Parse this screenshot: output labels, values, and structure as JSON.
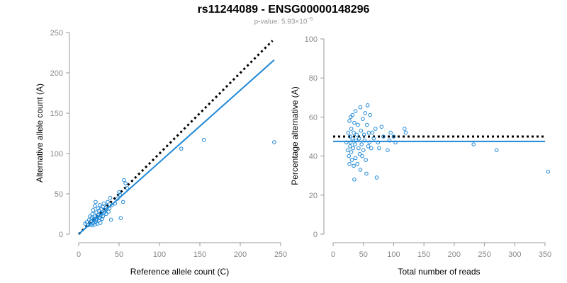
{
  "header": {
    "title": "rs11244089 - ENSG00000148296",
    "pvalue_prefix": "p-value: 5.93×10",
    "pvalue_exponent": "−5"
  },
  "chart_data": [
    {
      "type": "scatter",
      "xlabel": "Reference allele count (C)",
      "ylabel": "Alternative allele count (A)",
      "xlim": [
        0,
        250
      ],
      "ylim": [
        0,
        250
      ],
      "xticks": [
        "0",
        "50",
        "100",
        "150",
        "200",
        "250"
      ],
      "yticks": [
        "0",
        "50",
        "100",
        "150",
        "200",
        "250"
      ],
      "grid": false,
      "point_color": "#1f88d6",
      "reference_line": {
        "style": "dotted",
        "color": "#000000",
        "from": [
          0,
          0
        ],
        "to": [
          240,
          240
        ]
      },
      "fit_line": {
        "style": "solid",
        "color": "#1f88d6",
        "from": [
          0,
          0
        ],
        "to": [
          242,
          216
        ]
      },
      "points": [
        [
          8,
          13
        ],
        [
          10,
          15
        ],
        [
          12,
          11
        ],
        [
          13,
          18
        ],
        [
          14,
          22
        ],
        [
          15,
          12
        ],
        [
          15,
          16
        ],
        [
          16,
          20
        ],
        [
          17,
          11
        ],
        [
          17,
          25
        ],
        [
          18,
          14
        ],
        [
          18,
          30
        ],
        [
          19,
          17
        ],
        [
          19,
          19
        ],
        [
          20,
          12
        ],
        [
          20,
          22
        ],
        [
          20,
          35
        ],
        [
          21,
          15
        ],
        [
          21,
          40
        ],
        [
          22,
          18
        ],
        [
          22,
          27
        ],
        [
          23,
          21
        ],
        [
          23,
          13
        ],
        [
          24,
          24
        ],
        [
          24,
          32
        ],
        [
          25,
          17
        ],
        [
          25,
          29
        ],
        [
          26,
          20
        ],
        [
          26,
          36
        ],
        [
          27,
          14
        ],
        [
          27,
          23
        ],
        [
          28,
          26
        ],
        [
          28,
          31
        ],
        [
          29,
          19
        ],
        [
          30,
          22
        ],
        [
          30,
          34
        ],
        [
          31,
          38
        ],
        [
          32,
          27
        ],
        [
          33,
          30
        ],
        [
          34,
          25
        ],
        [
          35,
          35
        ],
        [
          36,
          40
        ],
        [
          37,
          28
        ],
        [
          38,
          32
        ],
        [
          39,
          45
        ],
        [
          40,
          18
        ],
        [
          41,
          36
        ],
        [
          45,
          38
        ],
        [
          48,
          44
        ],
        [
          50,
          52
        ],
        [
          51,
          49
        ],
        [
          52,
          20
        ],
        [
          55,
          40
        ],
        [
          56,
          67
        ],
        [
          58,
          63
        ],
        [
          60,
          57
        ],
        [
          127,
          106
        ],
        [
          155,
          117
        ],
        [
          242,
          114
        ]
      ]
    },
    {
      "type": "scatter",
      "xlabel": "Total number of reads",
      "ylabel": "Percentage alternative (A)",
      "xlim": [
        0,
        350
      ],
      "ylim": [
        0,
        100
      ],
      "xticks": [
        "0",
        "50",
        "100",
        "150",
        "200",
        "250",
        "300",
        "350"
      ],
      "yticks": [
        "0",
        "20",
        "40",
        "60",
        "80",
        "100"
      ],
      "grid": false,
      "point_color": "#1f88d6",
      "reference_line": {
        "style": "dotted",
        "color": "#000000",
        "y": 50
      },
      "fit_line": {
        "style": "solid",
        "color": "#1f88d6",
        "y": 47.5
      },
      "points": [
        [
          22,
          47
        ],
        [
          24,
          43
        ],
        [
          25,
          52
        ],
        [
          26,
          40
        ],
        [
          27,
          58
        ],
        [
          27,
          36
        ],
        [
          28,
          50
        ],
        [
          28,
          45
        ],
        [
          29,
          60
        ],
        [
          29,
          47
        ],
        [
          30,
          54
        ],
        [
          30,
          42
        ],
        [
          31,
          38
        ],
        [
          32,
          49
        ],
        [
          32,
          61
        ],
        [
          33,
          44
        ],
        [
          34,
          35
        ],
        [
          34,
          52
        ],
        [
          35,
          28
        ],
        [
          35,
          57
        ],
        [
          36,
          46
        ],
        [
          37,
          39
        ],
        [
          37,
          63
        ],
        [
          38,
          48
        ],
        [
          39,
          51
        ],
        [
          40,
          36
        ],
        [
          41,
          56
        ],
        [
          42,
          44
        ],
        [
          43,
          49
        ],
        [
          44,
          41
        ],
        [
          45,
          65
        ],
        [
          45,
          33
        ],
        [
          46,
          53
        ],
        [
          47,
          46
        ],
        [
          48,
          40
        ],
        [
          49,
          59
        ],
        [
          50,
          43
        ],
        [
          51,
          51
        ],
        [
          52,
          48
        ],
        [
          53,
          62
        ],
        [
          54,
          38
        ],
        [
          55,
          31
        ],
        [
          56,
          56
        ],
        [
          57,
          66
        ],
        [
          58,
          45
        ],
        [
          59,
          52
        ],
        [
          60,
          47
        ],
        [
          61,
          61
        ],
        [
          63,
          44
        ],
        [
          65,
          52
        ],
        [
          67,
          49
        ],
        [
          70,
          54
        ],
        [
          72,
          29
        ],
        [
          74,
          47
        ],
        [
          76,
          44
        ],
        [
          80,
          55
        ],
        [
          83,
          50
        ],
        [
          90,
          43
        ],
        [
          93,
          48
        ],
        [
          95,
          52
        ],
        [
          100,
          50
        ],
        [
          103,
          47
        ],
        [
          118,
          54
        ],
        [
          120,
          52
        ],
        [
          232,
          46
        ],
        [
          270,
          43
        ],
        [
          355,
          32
        ]
      ]
    }
  ]
}
